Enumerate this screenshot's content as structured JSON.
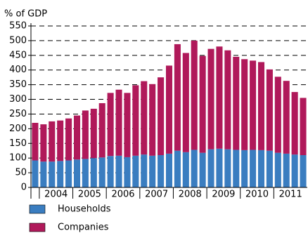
{
  "chart_data": {
    "type": "stacked-bar",
    "y_axis_label": "% of GDP",
    "categories": [
      null,
      "2004",
      null,
      null,
      null,
      "2005",
      null,
      null,
      null,
      "2006",
      null,
      null,
      null,
      "2007",
      null,
      null,
      null,
      "2008",
      null,
      null,
      null,
      "2009",
      null,
      null,
      null,
      "2010",
      null,
      null,
      null,
      "2011",
      null,
      null,
      null
    ],
    "series": [
      {
        "name": "Households",
        "color": "#3a7dc0",
        "values": [
          92,
          88,
          88,
          90,
          92,
          95,
          97,
          100,
          102,
          107,
          108,
          103,
          108,
          112,
          108,
          110,
          115,
          125,
          120,
          128,
          118,
          130,
          132,
          130,
          128,
          127,
          128,
          127,
          125,
          118,
          115,
          112,
          110
        ]
      },
      {
        "name": "Companies",
        "color": "#b0195a",
        "values": [
          128,
          127,
          137,
          138,
          143,
          150,
          165,
          168,
          185,
          215,
          225,
          219,
          240,
          250,
          244,
          265,
          300,
          363,
          338,
          372,
          330,
          342,
          348,
          337,
          317,
          310,
          304,
          300,
          277,
          259,
          248,
          213,
          195
        ]
      }
    ],
    "ylim": [
      0,
      550
    ],
    "yticks": [
      0,
      50,
      100,
      150,
      200,
      250,
      300,
      350,
      400,
      450,
      500,
      550
    ],
    "grid": true
  }
}
